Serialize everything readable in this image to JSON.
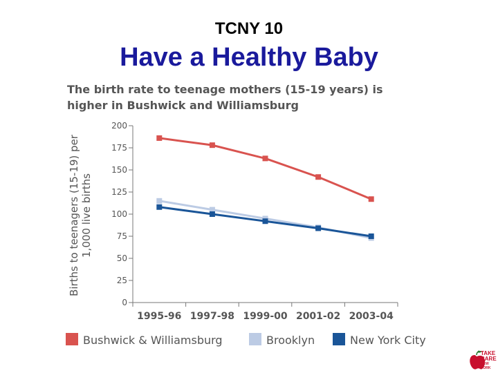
{
  "slide": {
    "kicker": "TCNY 10",
    "title": "Have a Healthy Baby"
  },
  "logo": {
    "line1": "TAKE",
    "line2": "CARE",
    "line3": "NEW YORK",
    "icon": "apple-icon",
    "color": "#c8102e"
  },
  "chart_data": {
    "type": "line",
    "title_lines": [
      "The birth rate to teenage mothers (15-19 years) is",
      "higher in Bushwick and Williamsburg"
    ],
    "ylabel_lines": [
      "Births to teenagers (15-19) per",
      "1,000 live births"
    ],
    "xlabel": "",
    "categories": [
      "1995-96",
      "1997-98",
      "1999-00",
      "2001-02",
      "2003-04"
    ],
    "ylim": [
      0,
      200
    ],
    "yticks": [
      0,
      25,
      50,
      75,
      100,
      125,
      150,
      175,
      200
    ],
    "grid": false,
    "legend_position": "bottom",
    "series": [
      {
        "name": "Bushwick & Williamsburg",
        "values": [
          186,
          178,
          163,
          142,
          117
        ],
        "color": "#d9534f"
      },
      {
        "name": "Brooklyn",
        "values": [
          115,
          105,
          95,
          85,
          73
        ],
        "color": "#bccbe4"
      },
      {
        "name": "New York City",
        "values": [
          108,
          100,
          92,
          84,
          75
        ],
        "color": "#1a5598"
      }
    ]
  }
}
